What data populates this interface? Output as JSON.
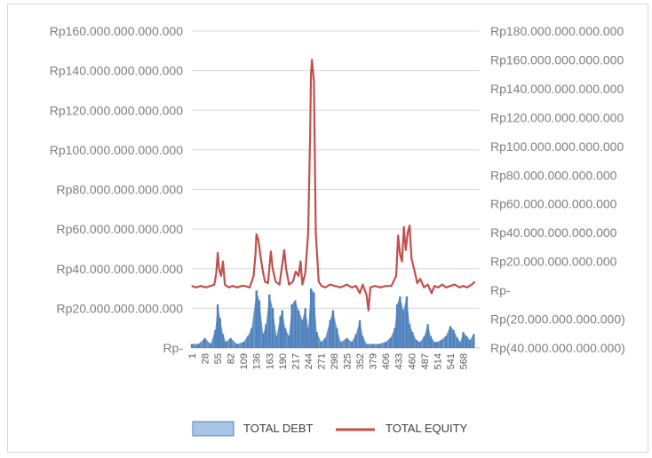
{
  "chart_data": {
    "type": "bar+line",
    "title": "",
    "xlabel": "",
    "ylabel": "",
    "grid": true,
    "legend_position": "bottom",
    "x_tick_labels": [
      "1",
      "28",
      "55",
      "82",
      "109",
      "136",
      "163",
      "190",
      "217",
      "244",
      "271",
      "298",
      "325",
      "352",
      "379",
      "406",
      "433",
      "460",
      "487",
      "514",
      "541",
      "568"
    ],
    "primary_axis": {
      "series": "TOTAL DEBT",
      "ylim": [
        0,
        160000000000000
      ],
      "tick_labels": [
        "Rp-",
        "Rp20.000.000.000.000",
        "Rp40.000.000.000.000",
        "Rp60.000.000.000.000",
        "Rp80.000.000.000.000",
        "Rp100.000.000.000.000",
        "Rp120.000.000.000.000",
        "Rp140.000.000.000.000",
        "Rp160.000.000.000.000"
      ]
    },
    "secondary_axis": {
      "series": "TOTAL EQUITY",
      "ylim": [
        -40000000000000,
        180000000000000
      ],
      "tick_labels": [
        "Rp(40.000.000.000.000)",
        "Rp(20.000.000.000.000)",
        "Rp-",
        "Rp20.000.000.000.000",
        "Rp40.000.000.000.000",
        "Rp60.000.000.000.000",
        "Rp80.000.000.000.000",
        "Rp100.000.000.000.000",
        "Rp120.000.000.000.000",
        "Rp140.000.000.000.000",
        "Rp160.000.000.000.000",
        "Rp180.000.000.000.000"
      ]
    },
    "series": [
      {
        "name": "TOTAL DEBT",
        "kind": "bar",
        "color": "#4f81bd",
        "points": [
          [
            1,
            2000000000000.0
          ],
          [
            15,
            2000000000000.0
          ],
          [
            28,
            5000000000000.0
          ],
          [
            40,
            2000000000000.0
          ],
          [
            50,
            9000000000000.0
          ],
          [
            55,
            22000000000000.0
          ],
          [
            60,
            15000000000000.0
          ],
          [
            66,
            7000000000000.0
          ],
          [
            72,
            3000000000000.0
          ],
          [
            82,
            5000000000000.0
          ],
          [
            95,
            2000000000000.0
          ],
          [
            109,
            3000000000000.0
          ],
          [
            118,
            6000000000000.0
          ],
          [
            126,
            10000000000000.0
          ],
          [
            136,
            29000000000000.0
          ],
          [
            142,
            24000000000000.0
          ],
          [
            150,
            7000000000000.0
          ],
          [
            156,
            12000000000000.0
          ],
          [
            163,
            27000000000000.0
          ],
          [
            170,
            20000000000000.0
          ],
          [
            178,
            6000000000000.0
          ],
          [
            186,
            16000000000000.0
          ],
          [
            190,
            19000000000000.0
          ],
          [
            196,
            10000000000000.0
          ],
          [
            204,
            6000000000000.0
          ],
          [
            210,
            22000000000000.0
          ],
          [
            217,
            24000000000000.0
          ],
          [
            224,
            19000000000000.0
          ],
          [
            232,
            14000000000000.0
          ],
          [
            238,
            20000000000000.0
          ],
          [
            244,
            10000000000000.0
          ],
          [
            250,
            30000000000000.0
          ],
          [
            256,
            28000000000000.0
          ],
          [
            262,
            8000000000000.0
          ],
          [
            271,
            3000000000000.0
          ],
          [
            280,
            5000000000000.0
          ],
          [
            290,
            14000000000000.0
          ],
          [
            296,
            19000000000000.0
          ],
          [
            304,
            10000000000000.0
          ],
          [
            312,
            3000000000000.0
          ],
          [
            325,
            5000000000000.0
          ],
          [
            335,
            3000000000000.0
          ],
          [
            344,
            7000000000000.0
          ],
          [
            352,
            14000000000000.0
          ],
          [
            358,
            6000000000000.0
          ],
          [
            366,
            2000000000000.0
          ],
          [
            379,
            2000000000000.0
          ],
          [
            392,
            2000000000000.0
          ],
          [
            406,
            3000000000000.0
          ],
          [
            416,
            5000000000000.0
          ],
          [
            425,
            10000000000000.0
          ],
          [
            430,
            22000000000000.0
          ],
          [
            436,
            26000000000000.0
          ],
          [
            443,
            19000000000000.0
          ],
          [
            450,
            26000000000000.0
          ],
          [
            456,
            12000000000000.0
          ],
          [
            462,
            8000000000000.0
          ],
          [
            470,
            4000000000000.0
          ],
          [
            478,
            3000000000000.0
          ],
          [
            487,
            6000000000000.0
          ],
          [
            494,
            12000000000000.0
          ],
          [
            500,
            6000000000000.0
          ],
          [
            508,
            3000000000000.0
          ],
          [
            514,
            3000000000000.0
          ],
          [
            522,
            4000000000000.0
          ],
          [
            532,
            6000000000000.0
          ],
          [
            541,
            11000000000000.0
          ],
          [
            548,
            9000000000000.0
          ],
          [
            556,
            5000000000000.0
          ],
          [
            562,
            3000000000000.0
          ],
          [
            568,
            8000000000000.0
          ],
          [
            575,
            6000000000000.0
          ],
          [
            582,
            4000000000000.0
          ],
          [
            590,
            7000000000000.0
          ]
        ]
      },
      {
        "name": "TOTAL EQUITY",
        "kind": "line",
        "color": "#c0504d",
        "points": [
          [
            1,
            3000000000000.0
          ],
          [
            10,
            2000000000000.0
          ],
          [
            20,
            3000000000000.0
          ],
          [
            30,
            2000000000000.0
          ],
          [
            40,
            3000000000000.0
          ],
          [
            48,
            4000000000000.0
          ],
          [
            52,
            12000000000000.0
          ],
          [
            55,
            26000000000000.0
          ],
          [
            58,
            15000000000000.0
          ],
          [
            62,
            10000000000000.0
          ],
          [
            66,
            20000000000000.0
          ],
          [
            70,
            4000000000000.0
          ],
          [
            78,
            2000000000000.0
          ],
          [
            86,
            3000000000000.0
          ],
          [
            96,
            2000000000000.0
          ],
          [
            104,
            3000000000000.0
          ],
          [
            112,
            3000000000000.0
          ],
          [
            122,
            2000000000000.0
          ],
          [
            130,
            10000000000000.0
          ],
          [
            134,
            25000000000000.0
          ],
          [
            136,
            39000000000000.0
          ],
          [
            140,
            35000000000000.0
          ],
          [
            146,
            20000000000000.0
          ],
          [
            150,
            12000000000000.0
          ],
          [
            154,
            6000000000000.0
          ],
          [
            160,
            5000000000000.0
          ],
          [
            166,
            27000000000000.0
          ],
          [
            170,
            15000000000000.0
          ],
          [
            176,
            6000000000000.0
          ],
          [
            184,
            4000000000000.0
          ],
          [
            190,
            18000000000000.0
          ],
          [
            194,
            28000000000000.0
          ],
          [
            198,
            15000000000000.0
          ],
          [
            204,
            4000000000000.0
          ],
          [
            212,
            6000000000000.0
          ],
          [
            218,
            13000000000000.0
          ],
          [
            224,
            10000000000000.0
          ],
          [
            228,
            20000000000000.0
          ],
          [
            232,
            4000000000000.0
          ],
          [
            238,
            12000000000000.0
          ],
          [
            244,
            40000000000000.0
          ],
          [
            248,
            107000000000000.0
          ],
          [
            250,
            150000000000000.0
          ],
          [
            252,
            160000000000000.0
          ],
          [
            256,
            145000000000000.0
          ],
          [
            260,
            40000000000000.0
          ],
          [
            266,
            6000000000000.0
          ],
          [
            272,
            3000000000000.0
          ],
          [
            280,
            2000000000000.0
          ],
          [
            290,
            4000000000000.0
          ],
          [
            300,
            3000000000000.0
          ],
          [
            312,
            2000000000000.0
          ],
          [
            325,
            4000000000000.0
          ],
          [
            335,
            2000000000000.0
          ],
          [
            344,
            3000000000000.0
          ],
          [
            352,
            -2000000000000.0
          ],
          [
            358,
            4000000000000.0
          ],
          [
            366,
            -3000000000000.0
          ],
          [
            370,
            -14000000000000.0
          ],
          [
            374,
            2000000000000.0
          ],
          [
            384,
            3000000000000.0
          ],
          [
            395,
            2000000000000.0
          ],
          [
            406,
            3000000000000.0
          ],
          [
            418,
            3000000000000.0
          ],
          [
            428,
            10000000000000.0
          ],
          [
            432,
            38000000000000.0
          ],
          [
            436,
            25000000000000.0
          ],
          [
            440,
            20000000000000.0
          ],
          [
            444,
            44000000000000.0
          ],
          [
            448,
            28000000000000.0
          ],
          [
            452,
            40000000000000.0
          ],
          [
            456,
            45000000000000.0
          ],
          [
            460,
            22000000000000.0
          ],
          [
            466,
            14000000000000.0
          ],
          [
            472,
            5000000000000.0
          ],
          [
            478,
            8000000000000.0
          ],
          [
            486,
            2000000000000.0
          ],
          [
            494,
            4000000000000.0
          ],
          [
            502,
            -2000000000000.0
          ],
          [
            508,
            3000000000000.0
          ],
          [
            516,
            2000000000000.0
          ],
          [
            524,
            4000000000000.0
          ],
          [
            532,
            2000000000000.0
          ],
          [
            541,
            3000000000000.0
          ],
          [
            550,
            4000000000000.0
          ],
          [
            560,
            2000000000000.0
          ],
          [
            568,
            3000000000000.0
          ],
          [
            576,
            2000000000000.0
          ],
          [
            586,
            4000000000000.0
          ],
          [
            592,
            6000000000000.0
          ]
        ]
      }
    ]
  }
}
